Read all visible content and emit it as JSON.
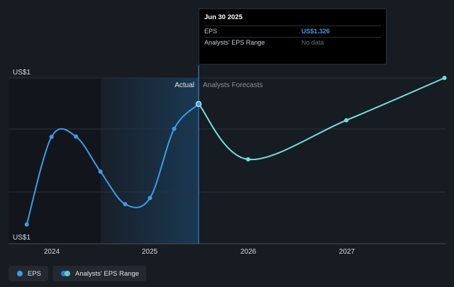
{
  "chart_data": {
    "type": "line",
    "y_axis_labels": [
      "US$1",
      "US$1"
    ],
    "x_ticks": [
      "2024",
      "2025",
      "2026",
      "2027"
    ],
    "region_labels": {
      "actual": "Actual",
      "forecast": "Analysts Forecasts"
    },
    "series": [
      {
        "name": "EPS",
        "kind": "actual",
        "color": "#3d9be9",
        "points": [
          {
            "x": "2023-09-30",
            "y": 1.03
          },
          {
            "x": "2023-12-31",
            "y": 1.245
          },
          {
            "x": "2024-03-31",
            "y": 1.246
          },
          {
            "x": "2024-06-30",
            "y": 1.16
          },
          {
            "x": "2024-09-30",
            "y": 1.08
          },
          {
            "x": "2024-12-31",
            "y": 1.095
          },
          {
            "x": "2025-03-31",
            "y": 1.265
          },
          {
            "x": "2025-06-30",
            "y": 1.326
          }
        ]
      },
      {
        "name": "Analysts Forecasts",
        "kind": "forecast",
        "color": "#6fe0dc",
        "points": [
          {
            "x": "2025-06-30",
            "y": 1.326
          },
          {
            "x": "2025-12-31",
            "y": 1.19
          },
          {
            "x": "2026-12-31",
            "y": 1.286
          },
          {
            "x": "2027-12-31",
            "y": 1.39
          }
        ]
      }
    ],
    "y_range": [
      1.0,
      1.39
    ],
    "grid": true,
    "highlight_colors": {
      "past_band": "#101319",
      "forecast_band": "#1a3a55"
    }
  },
  "tooltip": {
    "date": "Jun 30 2025",
    "rows": [
      {
        "label": "EPS",
        "value": "US$1.326"
      },
      {
        "label": "Analysts' EPS Range",
        "value": "No data"
      }
    ]
  },
  "legend": {
    "items": [
      {
        "label": "EPS",
        "color": "#3d9be9"
      },
      {
        "label": "Analysts' EPS Range",
        "colors": [
          "#3d9be9",
          "#6fe0dc"
        ]
      }
    ]
  }
}
